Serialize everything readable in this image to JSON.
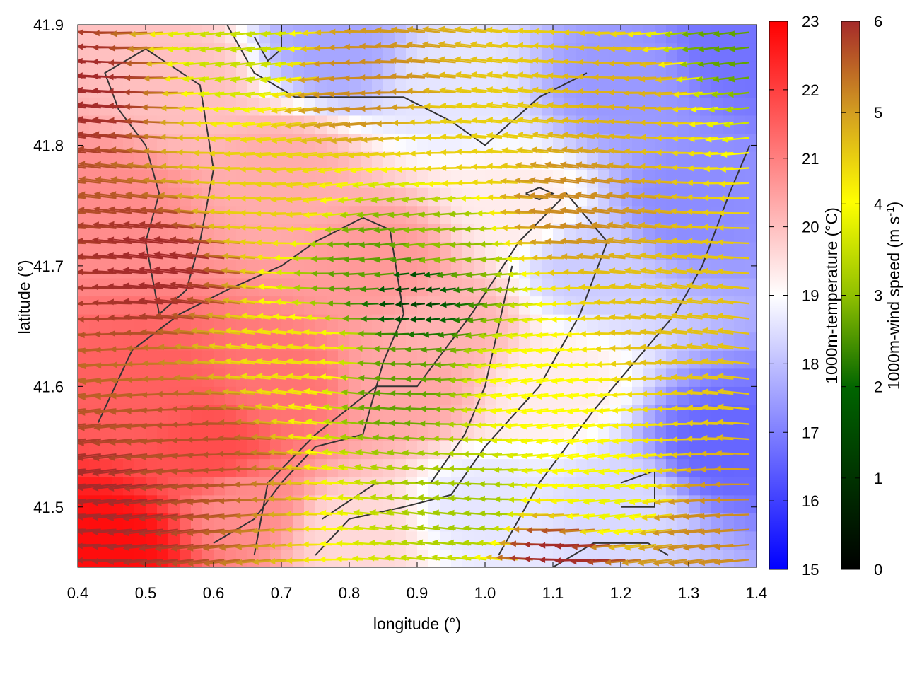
{
  "chart_data": {
    "type": "heatmap",
    "title": "",
    "xlabel": "longitude (°)",
    "ylabel": "latitude (°)",
    "xlim": [
      0.4,
      1.4
    ],
    "ylim": [
      41.45,
      41.9
    ],
    "x_ticks": [
      "0.4",
      "0.5",
      "0.6",
      "0.7",
      "0.8",
      "0.9",
      "1.0",
      "1.1",
      "1.2",
      "1.3",
      "1.4"
    ],
    "y_ticks": [
      "41.5",
      "41.6",
      "41.7",
      "41.8",
      "41.9"
    ],
    "temperature_colorbar": {
      "label": "1000m-temperature (°C)",
      "range": [
        15,
        23
      ],
      "ticks": [
        "15",
        "16",
        "17",
        "18",
        "19",
        "20",
        "21",
        "22",
        "23"
      ],
      "colors": [
        "#0000ff",
        "#ffffff",
        "#ff0000"
      ]
    },
    "wind_colorbar": {
      "label": "1000m-wind speed (m s⁻¹)",
      "range": [
        0,
        6
      ],
      "ticks": [
        "0",
        "1",
        "2",
        "3",
        "4",
        "5",
        "6"
      ],
      "colors": [
        "#000000",
        "#006400",
        "#90c000",
        "#ffff00",
        "#d4a020",
        "#a52a2a"
      ]
    },
    "temperature_field": {
      "description_points": [
        {
          "lon": 0.45,
          "lat": 41.47,
          "t": 22.8
        },
        {
          "lon": 0.5,
          "lat": 41.6,
          "t": 21.5
        },
        {
          "lon": 0.6,
          "lat": 41.55,
          "t": 21.8
        },
        {
          "lon": 0.7,
          "lat": 41.6,
          "t": 21.2
        },
        {
          "lon": 0.45,
          "lat": 41.75,
          "t": 20.8
        },
        {
          "lon": 0.55,
          "lat": 41.85,
          "t": 20.0
        },
        {
          "lon": 0.7,
          "lat": 41.78,
          "t": 20.3
        },
        {
          "lon": 0.85,
          "lat": 41.7,
          "t": 20.6
        },
        {
          "lon": 0.88,
          "lat": 41.6,
          "t": 20.4
        },
        {
          "lon": 0.95,
          "lat": 41.65,
          "t": 20.2
        },
        {
          "lon": 0.95,
          "lat": 41.85,
          "t": 18.6
        },
        {
          "lon": 1.05,
          "lat": 41.75,
          "t": 19.3
        },
        {
          "lon": 1.0,
          "lat": 41.5,
          "t": 18.6
        },
        {
          "lon": 1.1,
          "lat": 41.6,
          "t": 19.3
        },
        {
          "lon": 1.2,
          "lat": 41.85,
          "t": 17.4
        },
        {
          "lon": 1.3,
          "lat": 41.75,
          "t": 17.2
        },
        {
          "lon": 1.35,
          "lat": 41.55,
          "t": 16.6
        },
        {
          "lon": 1.38,
          "lat": 41.88,
          "t": 16.8
        },
        {
          "lon": 1.2,
          "lat": 41.5,
          "t": 18.4
        },
        {
          "lon": 1.15,
          "lat": 41.7,
          "t": 18.2
        },
        {
          "lon": 0.78,
          "lat": 41.88,
          "t": 17.6
        },
        {
          "lon": 0.65,
          "lat": 41.5,
          "t": 20.8
        },
        {
          "lon": 0.8,
          "lat": 41.48,
          "t": 19.6
        }
      ]
    },
    "wind_field": {
      "direction": "predominantly westward (easterly flow)",
      "speed_points": [
        {
          "lon": 0.45,
          "lat": 41.5,
          "s": 6.0
        },
        {
          "lon": 0.45,
          "lat": 41.85,
          "s": 6.0
        },
        {
          "lon": 0.55,
          "lat": 41.7,
          "s": 6.0
        },
        {
          "lon": 0.6,
          "lat": 41.55,
          "s": 5.6
        },
        {
          "lon": 0.7,
          "lat": 41.75,
          "s": 4.2
        },
        {
          "lon": 0.75,
          "lat": 41.62,
          "s": 4.0
        },
        {
          "lon": 0.85,
          "lat": 41.7,
          "s": 2.0
        },
        {
          "lon": 0.9,
          "lat": 41.68,
          "s": 0.8
        },
        {
          "lon": 0.88,
          "lat": 41.6,
          "s": 2.0
        },
        {
          "lon": 0.95,
          "lat": 41.72,
          "s": 2.4
        },
        {
          "lon": 1.0,
          "lat": 41.5,
          "s": 2.6
        },
        {
          "lon": 1.0,
          "lat": 41.8,
          "s": 4.2
        },
        {
          "lon": 0.85,
          "lat": 41.85,
          "s": 5.0
        },
        {
          "lon": 1.1,
          "lat": 41.6,
          "s": 3.6
        },
        {
          "lon": 1.15,
          "lat": 41.75,
          "s": 5.0
        },
        {
          "lon": 1.25,
          "lat": 41.85,
          "s": 4.6
        },
        {
          "lon": 1.3,
          "lat": 41.65,
          "s": 4.4
        },
        {
          "lon": 1.37,
          "lat": 41.88,
          "s": 2.0
        },
        {
          "lon": 1.2,
          "lat": 41.5,
          "s": 3.4
        },
        {
          "lon": 1.15,
          "lat": 41.46,
          "s": 6.0
        },
        {
          "lon": 1.35,
          "lat": 41.48,
          "s": 5.0
        },
        {
          "lon": 0.65,
          "lat": 41.88,
          "s": 3.0
        }
      ]
    },
    "contour_color": "#333333"
  }
}
